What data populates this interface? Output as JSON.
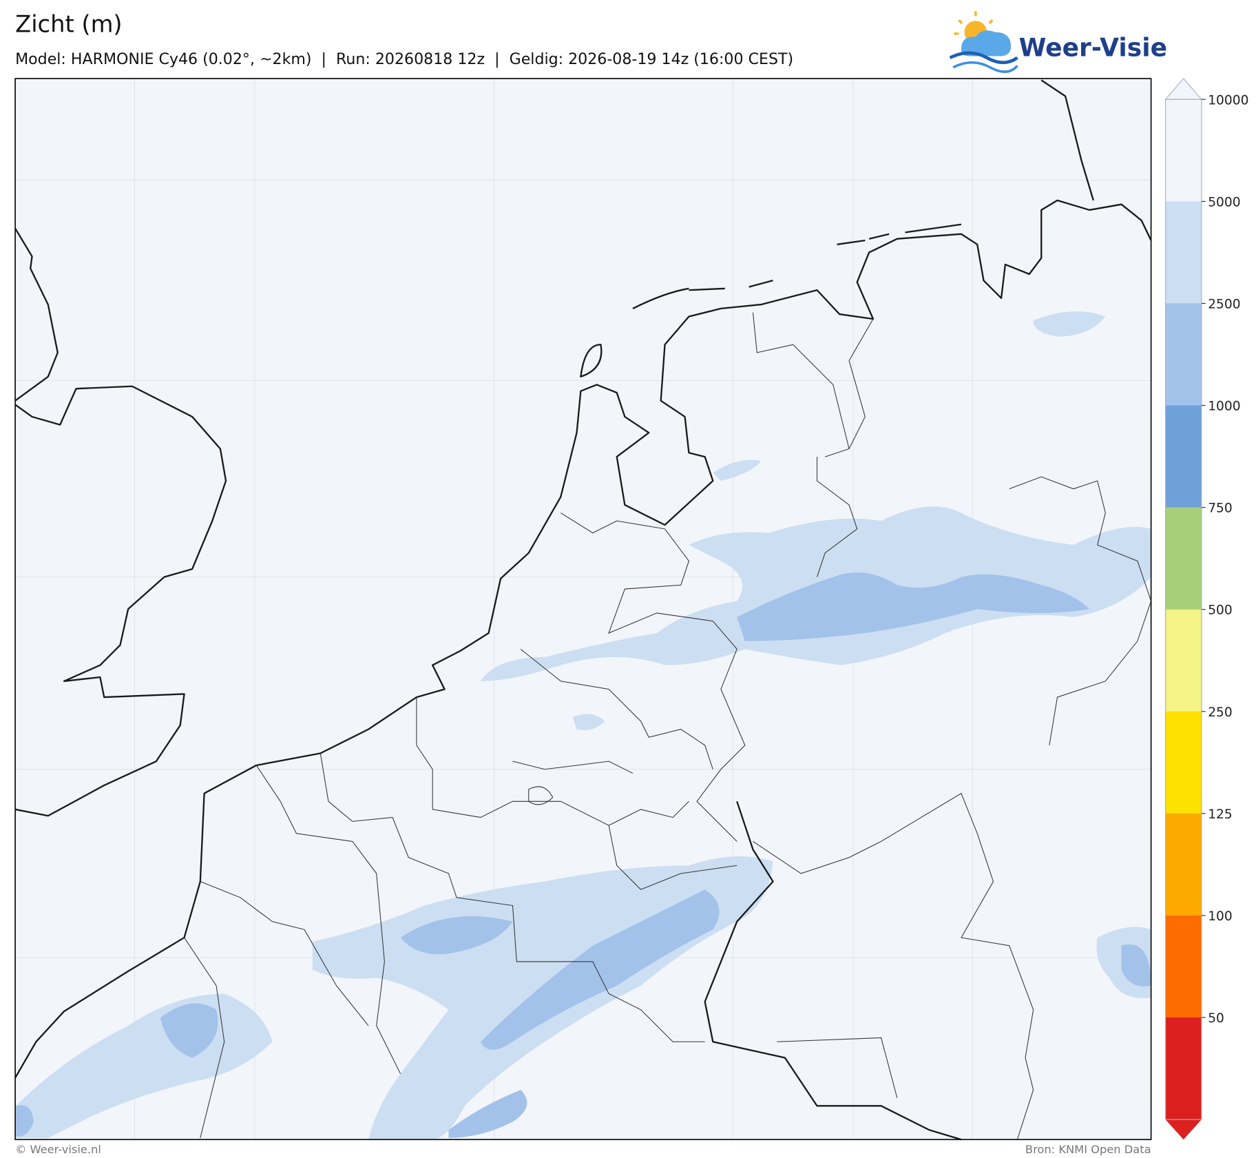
{
  "header": {
    "title": "Zicht (m)",
    "subtitle": "Model: HARMONIE Cy46 (0.02°, ~2km)  |  Run: 20260818 12z  |  Geldig: 2026-08-19 14z (16:00 CEST)"
  },
  "logo": {
    "text": "Weer-Visie"
  },
  "colorbar": {
    "ticks": [
      10000,
      5000,
      2500,
      1000,
      750,
      500,
      250,
      125,
      100,
      50
    ],
    "colors": [
      "#f2f5fa",
      "#ccdef2",
      "#a3c2ea",
      "#6fa1d9",
      "#a7cf7a",
      "#f4f386",
      "#fde100",
      "#fda900",
      "#fe6b00",
      "#dc2020"
    ]
  },
  "footer": {
    "left": "© Weer-visie.nl",
    "right": "Bron: KNMI Open Data"
  }
}
